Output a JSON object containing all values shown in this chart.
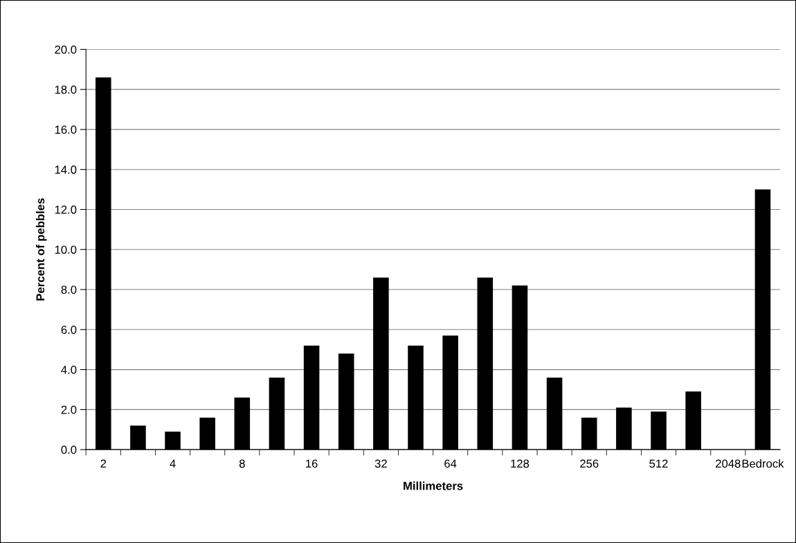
{
  "chart_data": {
    "type": "bar",
    "xlabel": "Millimeters",
    "ylabel": "Percent of pebbles",
    "categories": [
      "2",
      null,
      "4",
      null,
      "8",
      null,
      "16",
      null,
      "32",
      null,
      "64",
      null,
      "128",
      null,
      "256",
      null,
      "512",
      null,
      "2048",
      "Bedrock"
    ],
    "values": [
      18.6,
      1.2,
      0.9,
      1.6,
      2.6,
      3.6,
      5.2,
      4.8,
      8.6,
      5.2,
      5.7,
      8.6,
      8.2,
      3.6,
      1.6,
      2.1,
      1.9,
      2.9,
      0,
      13.0
    ],
    "color": "#000000",
    "ylim": [
      0,
      20
    ],
    "yticks": [
      {
        "value": 0,
        "label": "0.0"
      },
      {
        "value": 2,
        "label": "2.0"
      },
      {
        "value": 4,
        "label": "4.0"
      },
      {
        "value": 6,
        "label": "6.0"
      },
      {
        "value": 8,
        "label": "8.0"
      },
      {
        "value": 10,
        "label": "10.0"
      },
      {
        "value": 12,
        "label": "12.0"
      },
      {
        "value": 14,
        "label": "14.0"
      },
      {
        "value": 16,
        "label": "16.0"
      },
      {
        "value": 18,
        "label": "18.0"
      },
      {
        "value": 20,
        "label": "20.0"
      }
    ],
    "grid": "y"
  }
}
